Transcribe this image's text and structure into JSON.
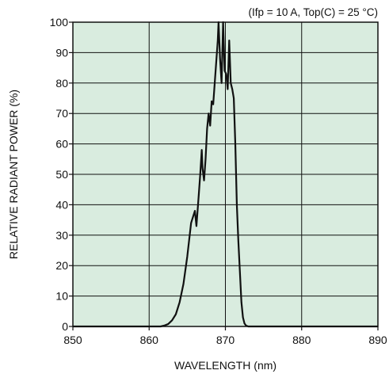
{
  "chart_data": {
    "type": "line",
    "annotation": "(Ifp = 10 A, Top(C) = 25 °C)",
    "xlabel": "WAVELENGTH (nm)",
    "ylabel": "RELATIVE RADIANT POWER (%)",
    "xlim": [
      850,
      890
    ],
    "ylim": [
      0,
      100
    ],
    "xticks": [
      850,
      860,
      870,
      880,
      890
    ],
    "yticks": [
      0,
      10,
      20,
      30,
      40,
      50,
      60,
      70,
      80,
      90,
      100
    ],
    "grid": true,
    "colors": {
      "plot_background": "#d9ecdf",
      "line": "#111111",
      "grid": "#111111"
    },
    "series": [
      {
        "name": "",
        "x": [
          850,
          861.5,
          862.0,
          862.5,
          863.0,
          863.5,
          864.0,
          864.5,
          865.0,
          865.5,
          866.0,
          866.2,
          866.5,
          866.7,
          866.9,
          867.0,
          867.2,
          867.4,
          867.6,
          867.8,
          868.0,
          868.2,
          868.4,
          868.6,
          868.8,
          869.0,
          869.1,
          869.3,
          869.5,
          869.7,
          869.9,
          870.1,
          870.3,
          870.5,
          870.7,
          870.9,
          871.1,
          871.3,
          871.5,
          871.7,
          871.9,
          872.1,
          872.3,
          872.5,
          872.7,
          873.0,
          873.5,
          890
        ],
        "y": [
          0,
          0,
          0.3,
          0.8,
          2,
          4,
          8,
          14,
          23,
          34,
          38,
          33,
          43,
          50,
          58,
          52,
          48,
          55,
          65,
          70,
          66,
          74,
          73,
          80,
          87,
          94,
          100,
          88,
          80,
          100,
          84,
          83,
          78,
          94,
          80,
          78,
          75,
          60,
          40,
          28,
          18,
          8,
          3,
          1,
          0.3,
          0,
          0,
          0
        ]
      }
    ]
  }
}
